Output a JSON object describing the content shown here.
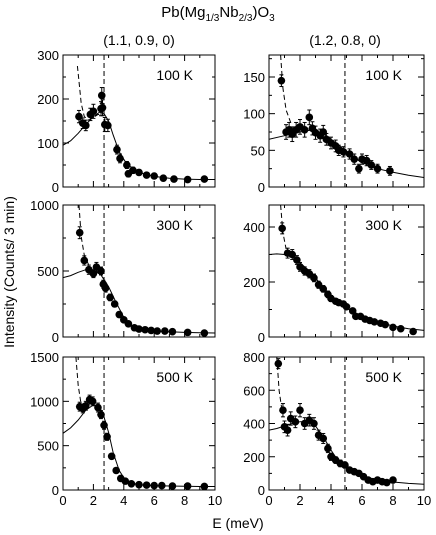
{
  "figure": {
    "title": {
      "main": "Pb(Mg",
      "sub1": "1/3",
      "mid": "Nb",
      "sub2": "2/3",
      "end": ")O",
      "sub3": "3"
    },
    "columns": [
      "(1.1, 0.9, 0)",
      "(1.2, 0.8, 0)"
    ],
    "ylabel": "Intensity (Counts/ 3 min)",
    "xlabel": "E (meV)"
  },
  "chart_data": [
    {
      "type": "scatter",
      "column": "(1.1, 0.9, 0)",
      "temperature": "100 K",
      "xlim": [
        0,
        10
      ],
      "ylim": [
        0,
        300
      ],
      "yticks": [
        "0",
        "100",
        "200",
        "300"
      ],
      "xticks": [],
      "vline": 2.7,
      "points": [
        [
          1.05,
          160,
          14
        ],
        [
          1.3,
          145,
          12
        ],
        [
          1.5,
          140,
          12
        ],
        [
          1.8,
          165,
          14
        ],
        [
          2.0,
          172,
          16
        ],
        [
          2.5,
          178,
          16
        ],
        [
          2.55,
          208,
          18
        ],
        [
          2.6,
          180,
          18
        ],
        [
          2.75,
          142,
          16
        ],
        [
          2.95,
          140,
          14
        ],
        [
          3.55,
          85,
          10
        ],
        [
          3.75,
          65,
          10
        ],
        [
          4.2,
          50,
          8
        ],
        [
          4.3,
          30,
          7
        ],
        [
          4.6,
          38,
          7
        ],
        [
          5.0,
          33,
          6
        ],
        [
          5.5,
          27,
          6
        ],
        [
          6.0,
          25,
          6
        ],
        [
          6.6,
          20,
          6
        ],
        [
          7.3,
          18,
          5
        ],
        [
          8.2,
          17,
          5
        ],
        [
          9.3,
          18,
          5
        ]
      ],
      "dashed_curve": [
        [
          0.95,
          275
        ],
        [
          1.05,
          240
        ],
        [
          1.2,
          190
        ],
        [
          1.4,
          160
        ],
        [
          1.7,
          152
        ],
        [
          2.0,
          158
        ],
        [
          2.3,
          165
        ],
        [
          2.6,
          163
        ]
      ],
      "solid_curve": [
        [
          0,
          95
        ],
        [
          0.5,
          105
        ],
        [
          1.0,
          122
        ],
        [
          1.5,
          142
        ],
        [
          2.0,
          160
        ],
        [
          2.4,
          170
        ],
        [
          2.7,
          167
        ],
        [
          3.0,
          150
        ],
        [
          3.3,
          118
        ],
        [
          3.7,
          80
        ],
        [
          4.2,
          52
        ],
        [
          5.0,
          33
        ],
        [
          6.0,
          24
        ],
        [
          7.0,
          20
        ],
        [
          8.0,
          18
        ],
        [
          9.0,
          17
        ],
        [
          10.0,
          17
        ]
      ]
    },
    {
      "type": "scatter",
      "column": "(1.2, 0.8, 0)",
      "temperature": "100 K",
      "xlim": [
        0,
        10
      ],
      "ylim": [
        0,
        180
      ],
      "yticks": [
        "0",
        "50",
        "100",
        "150"
      ],
      "xticks": [],
      "vline": 4.9,
      "points": [
        [
          0.8,
          145,
          8
        ],
        [
          1.1,
          75,
          10
        ],
        [
          1.3,
          78,
          10
        ],
        [
          1.5,
          72,
          10
        ],
        [
          1.75,
          78,
          10
        ],
        [
          2.0,
          82,
          10
        ],
        [
          2.3,
          78,
          10
        ],
        [
          2.6,
          95,
          10
        ],
        [
          2.8,
          80,
          9
        ],
        [
          3.0,
          74,
          9
        ],
        [
          3.3,
          70,
          9
        ],
        [
          3.5,
          75,
          9
        ],
        [
          3.7,
          65,
          8
        ],
        [
          4.0,
          60,
          8
        ],
        [
          4.3,
          56,
          8
        ],
        [
          4.5,
          50,
          7
        ],
        [
          4.8,
          48,
          7
        ],
        [
          5.2,
          45,
          7
        ],
        [
          5.5,
          38,
          7
        ],
        [
          5.8,
          25,
          6
        ],
        [
          6.0,
          38,
          7
        ],
        [
          6.3,
          36,
          7
        ],
        [
          6.6,
          30,
          6
        ],
        [
          7.0,
          25,
          6
        ],
        [
          7.8,
          22,
          6
        ]
      ],
      "dashed_curve": [
        [
          0.75,
          180
        ],
        [
          0.9,
          135
        ],
        [
          1.1,
          105
        ],
        [
          1.4,
          88
        ]
      ],
      "solid_curve": [
        [
          0,
          65
        ],
        [
          1,
          70
        ],
        [
          2,
          75
        ],
        [
          2.8,
          78
        ],
        [
          3.5,
          73
        ],
        [
          4.0,
          65
        ],
        [
          4.5,
          57
        ],
        [
          5.0,
          48
        ],
        [
          5.5,
          40
        ],
        [
          6.0,
          33
        ],
        [
          7.0,
          25
        ],
        [
          8.0,
          20
        ],
        [
          9.0,
          16
        ],
        [
          10.0,
          13
        ]
      ]
    },
    {
      "type": "scatter",
      "column": "(1.1, 0.9, 0)",
      "temperature": "300 K",
      "xlim": [
        0,
        10
      ],
      "ylim": [
        0,
        1000
      ],
      "yticks": [
        "0",
        "500",
        "1000"
      ],
      "xticks": [],
      "vline": 2.7,
      "points": [
        [
          1.1,
          790,
          45
        ],
        [
          1.4,
          580,
          35
        ],
        [
          1.7,
          510,
          35
        ],
        [
          2.0,
          480,
          30
        ],
        [
          2.2,
          530,
          35
        ],
        [
          2.5,
          500,
          30
        ],
        [
          2.65,
          400,
          30
        ],
        [
          2.8,
          370,
          30
        ],
        [
          3.1,
          300,
          25
        ],
        [
          3.4,
          250,
          22
        ],
        [
          3.7,
          170,
          20
        ],
        [
          4.0,
          130,
          18
        ],
        [
          4.3,
          100,
          15
        ],
        [
          4.7,
          70,
          12
        ],
        [
          5.0,
          60,
          12
        ],
        [
          5.4,
          55,
          10
        ],
        [
          5.8,
          50,
          10
        ],
        [
          6.2,
          45,
          10
        ],
        [
          6.7,
          45,
          10
        ],
        [
          7.2,
          40,
          10
        ],
        [
          8.2,
          35,
          8
        ],
        [
          9.3,
          30,
          8
        ]
      ],
      "dashed_curve": [
        [
          1.05,
          1000
        ],
        [
          1.2,
          760
        ],
        [
          1.4,
          620
        ],
        [
          1.7,
          545
        ]
      ],
      "solid_curve": [
        [
          0,
          450
        ],
        [
          0.5,
          465
        ],
        [
          1.0,
          490
        ],
        [
          1.5,
          510
        ],
        [
          2.0,
          505
        ],
        [
          2.5,
          470
        ],
        [
          3.0,
          380
        ],
        [
          3.5,
          260
        ],
        [
          4.0,
          150
        ],
        [
          4.5,
          90
        ],
        [
          5.0,
          60
        ],
        [
          6.0,
          45
        ],
        [
          7.0,
          40
        ],
        [
          8.0,
          35
        ],
        [
          9.0,
          32
        ],
        [
          10.0,
          30
        ]
      ]
    },
    {
      "type": "scatter",
      "column": "(1.2, 0.8, 0)",
      "temperature": "300 K",
      "xlim": [
        0,
        10
      ],
      "ylim": [
        0,
        480
      ],
      "yticks": [
        "0",
        "200",
        "400"
      ],
      "xticks": [],
      "vline": 4.9,
      "points": [
        [
          0.85,
          395,
          20
        ],
        [
          1.2,
          305,
          18
        ],
        [
          1.5,
          300,
          18
        ],
        [
          1.8,
          280,
          16
        ],
        [
          2.0,
          255,
          16
        ],
        [
          2.3,
          240,
          15
        ],
        [
          2.6,
          230,
          15
        ],
        [
          2.9,
          215,
          14
        ],
        [
          3.2,
          190,
          13
        ],
        [
          3.5,
          175,
          12
        ],
        [
          3.8,
          155,
          12
        ],
        [
          4.0,
          140,
          11
        ],
        [
          4.3,
          130,
          10
        ],
        [
          4.5,
          125,
          10
        ],
        [
          4.8,
          120,
          10
        ],
        [
          5.0,
          110,
          10
        ],
        [
          5.4,
          95,
          9
        ],
        [
          5.6,
          75,
          8
        ],
        [
          5.9,
          75,
          8
        ],
        [
          6.2,
          65,
          8
        ],
        [
          6.5,
          60,
          8
        ],
        [
          6.8,
          55,
          7
        ],
        [
          7.2,
          50,
          7
        ],
        [
          7.5,
          45,
          7
        ],
        [
          8.0,
          35,
          6
        ],
        [
          8.5,
          30,
          6
        ],
        [
          9.3,
          20,
          5
        ]
      ],
      "dashed_curve": [
        [
          0.75,
          480
        ],
        [
          0.9,
          380
        ],
        [
          1.1,
          320
        ]
      ],
      "solid_curve": [
        [
          0,
          300
        ],
        [
          0.5,
          302
        ],
        [
          1.0,
          300
        ],
        [
          1.5,
          290
        ],
        [
          2.0,
          270
        ],
        [
          2.5,
          245
        ],
        [
          3.0,
          215
        ],
        [
          3.5,
          180
        ],
        [
          4.0,
          150
        ],
        [
          4.5,
          125
        ],
        [
          5.0,
          105
        ],
        [
          5.5,
          90
        ],
        [
          6.0,
          75
        ],
        [
          7.0,
          55
        ],
        [
          8.0,
          40
        ],
        [
          9.0,
          30
        ],
        [
          10.0,
          24
        ]
      ]
    },
    {
      "type": "scatter",
      "column": "(1.1, 0.9, 0)",
      "temperature": "500 K",
      "xlim": [
        0,
        10
      ],
      "ylim": [
        0,
        1500
      ],
      "yticks": [
        "0",
        "500",
        "1000",
        "1500"
      ],
      "xticks": [
        "0",
        "2",
        "4",
        "6",
        "8",
        "10"
      ],
      "vline": 2.7,
      "points": [
        [
          1.1,
          940,
          50
        ],
        [
          1.3,
          920,
          50
        ],
        [
          1.5,
          950,
          50
        ],
        [
          1.75,
          1020,
          50
        ],
        [
          1.95,
          1000,
          50
        ],
        [
          2.3,
          930,
          50
        ],
        [
          2.5,
          850,
          45
        ],
        [
          2.7,
          730,
          45
        ],
        [
          2.9,
          600,
          40
        ],
        [
          3.2,
          380,
          30
        ],
        [
          3.5,
          220,
          25
        ],
        [
          3.8,
          130,
          20
        ],
        [
          4.1,
          100,
          15
        ],
        [
          4.5,
          70,
          12
        ],
        [
          5.0,
          60,
          10
        ],
        [
          5.5,
          55,
          10
        ],
        [
          6.0,
          50,
          10
        ],
        [
          6.5,
          50,
          10
        ],
        [
          7.2,
          45,
          10
        ],
        [
          8.2,
          45,
          10
        ],
        [
          9.3,
          40,
          10
        ]
      ],
      "dashed_curve": [
        [
          0.85,
          1500
        ],
        [
          1.0,
          1180
        ],
        [
          1.2,
          960
        ]
      ],
      "solid_curve": [
        [
          0,
          640
        ],
        [
          0.5,
          700
        ],
        [
          1.0,
          790
        ],
        [
          1.5,
          900
        ],
        [
          2.0,
          960
        ],
        [
          2.3,
          950
        ],
        [
          2.6,
          880
        ],
        [
          3.0,
          650
        ],
        [
          3.3,
          420
        ],
        [
          3.7,
          220
        ],
        [
          4.0,
          140
        ],
        [
          4.5,
          80
        ],
        [
          5.0,
          60
        ],
        [
          6.0,
          50
        ],
        [
          7.0,
          45
        ],
        [
          8.0,
          42
        ],
        [
          9.0,
          40
        ],
        [
          10.0,
          40
        ]
      ]
    },
    {
      "type": "scatter",
      "column": "(1.2, 0.8, 0)",
      "temperature": "500 K",
      "xlim": [
        0,
        10
      ],
      "ylim": [
        0,
        800
      ],
      "yticks": [
        "0",
        "200",
        "400",
        "600",
        "800"
      ],
      "xticks": [
        "0",
        "2",
        "4",
        "6",
        "8",
        "10"
      ],
      "vline": 4.9,
      "points": [
        [
          0.6,
          760,
          30
        ],
        [
          0.9,
          480,
          40
        ],
        [
          1.0,
          380,
          35
        ],
        [
          1.2,
          360,
          35
        ],
        [
          1.4,
          430,
          40
        ],
        [
          1.7,
          410,
          35
        ],
        [
          2.0,
          480,
          40
        ],
        [
          2.3,
          400,
          35
        ],
        [
          2.6,
          420,
          35
        ],
        [
          2.9,
          400,
          35
        ],
        [
          3.2,
          330,
          30
        ],
        [
          3.5,
          310,
          30
        ],
        [
          3.8,
          250,
          25
        ],
        [
          4.0,
          200,
          22
        ],
        [
          4.3,
          180,
          20
        ],
        [
          4.6,
          160,
          20
        ],
        [
          4.9,
          150,
          18
        ],
        [
          5.2,
          120,
          16
        ],
        [
          5.5,
          110,
          15
        ],
        [
          5.8,
          100,
          15
        ],
        [
          6.1,
          80,
          12
        ],
        [
          6.4,
          60,
          12
        ],
        [
          6.7,
          50,
          10
        ],
        [
          7.0,
          60,
          10
        ],
        [
          7.3,
          50,
          10
        ],
        [
          7.6,
          45,
          10
        ],
        [
          8.0,
          60,
          10
        ]
      ],
      "dashed_curve": [
        [
          0.5,
          800
        ],
        [
          0.65,
          600
        ],
        [
          0.85,
          470
        ]
      ],
      "solid_curve": [
        [
          0,
          360
        ],
        [
          0.5,
          370
        ],
        [
          1.0,
          385
        ],
        [
          1.5,
          400
        ],
        [
          2.0,
          410
        ],
        [
          2.5,
          410
        ],
        [
          3.0,
          385
        ],
        [
          3.5,
          320
        ],
        [
          4.0,
          240
        ],
        [
          4.5,
          170
        ],
        [
          5.0,
          130
        ],
        [
          5.5,
          105
        ],
        [
          6.0,
          85
        ],
        [
          7.0,
          60
        ],
        [
          8.0,
          48
        ],
        [
          9.0,
          40
        ],
        [
          10.0,
          35
        ]
      ]
    }
  ]
}
